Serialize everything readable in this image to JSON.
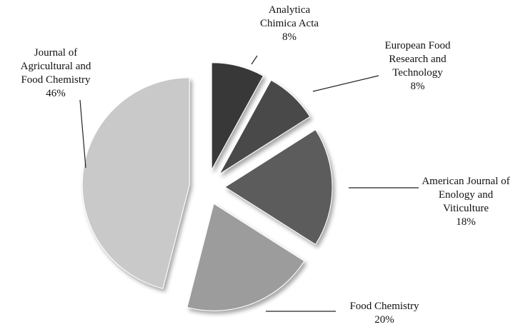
{
  "chart_data": {
    "type": "pie",
    "categories": [
      "Analytica Chimica Acta",
      "European Food Research and Technology",
      "American Journal of Enology and Viticulture",
      "Food Chemistry",
      "Journal of Agricultural and Food Chemistry"
    ],
    "values": [
      8,
      8,
      18,
      20,
      46
    ],
    "value_labels": [
      "8%",
      "8%",
      "18%",
      "20%",
      "46%"
    ],
    "colors": [
      "#383838",
      "#4a4a4a",
      "#5c5c5c",
      "#9c9c9c",
      "#c9c9c9"
    ]
  }
}
